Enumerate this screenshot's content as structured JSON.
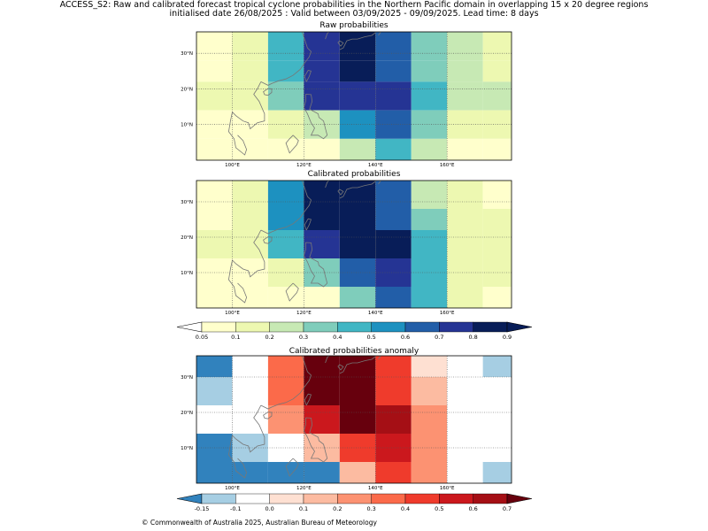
{
  "header": {
    "line1": "ACCESS_S2: Raw and calibrated forecast tropical cyclone probabilities in the Northern Pacific domain in overlapping 15 x 20 degree regions",
    "line2": "initialised date 26/08/2025 :  Valid between 03/09/2025 - 09/09/2025. Lead time: 8 days"
  },
  "axes": {
    "lon_ticks": [
      "100°E",
      "120°E",
      "140°E",
      "160°E"
    ],
    "lat_ticks": [
      "30°N",
      "20°N",
      "10°N"
    ]
  },
  "footer": {
    "text": "© Commonwealth of Australia 2025, Australian Bureau of Meteorology"
  },
  "colorbars": {
    "probability": {
      "labels": [
        "0.05",
        "0.1",
        "0.2",
        "0.3",
        "0.4",
        "0.5",
        "0.6",
        "0.7",
        "0.8",
        "0.9"
      ],
      "colors": [
        "#ffffcc",
        "#edf8b1",
        "#c7e9b4",
        "#7fcdbb",
        "#41b6c4",
        "#1d91c0",
        "#225ea8",
        "#253494",
        "#081d58"
      ]
    },
    "anomaly": {
      "labels": [
        "-0.15",
        "-0.1",
        "0.0",
        "0.1",
        "0.2",
        "0.3",
        "0.4",
        "0.5",
        "0.6",
        "0.7"
      ],
      "colors": [
        "#a6cee3",
        "#ffffff",
        "#fee0d2",
        "#fcbba1",
        "#fc9272",
        "#fb6a4a",
        "#ef3b2c",
        "#cb181d",
        "#a50f15"
      ]
    }
  },
  "chart_data": [
    {
      "type": "heatmap",
      "title": "Raw probabilities",
      "x_range": [
        90,
        178
      ],
      "y_range": [
        0,
        36
      ],
      "colors": [
        "#ffffcc",
        "#edf8b1",
        "#c7e9b4",
        "#7fcdbb",
        "#41b6c4",
        "#1d91c0",
        "#225ea8",
        "#253494",
        "#081d58"
      ],
      "cells": [
        {
          "x0": 90,
          "x1": 100,
          "y0": 28,
          "y1": 36,
          "v": 0.08
        },
        {
          "x0": 100,
          "x1": 110,
          "y0": 28,
          "y1": 36,
          "v": 0.15
        },
        {
          "x0": 110,
          "x1": 120,
          "y0": 28,
          "y1": 36,
          "v": 0.45
        },
        {
          "x0": 120,
          "x1": 130,
          "y0": 28,
          "y1": 36,
          "v": 0.75
        },
        {
          "x0": 130,
          "x1": 140,
          "y0": 28,
          "y1": 36,
          "v": 0.85
        },
        {
          "x0": 140,
          "x1": 150,
          "y0": 28,
          "y1": 36,
          "v": 0.65
        },
        {
          "x0": 150,
          "x1": 160,
          "y0": 28,
          "y1": 36,
          "v": 0.35
        },
        {
          "x0": 160,
          "x1": 170,
          "y0": 28,
          "y1": 36,
          "v": 0.25
        },
        {
          "x0": 170,
          "x1": 178,
          "y0": 28,
          "y1": 36,
          "v": 0.15
        },
        {
          "x0": 90,
          "x1": 100,
          "y0": 22,
          "y1": 28,
          "v": 0.08
        },
        {
          "x0": 100,
          "x1": 110,
          "y0": 22,
          "y1": 28,
          "v": 0.15
        },
        {
          "x0": 110,
          "x1": 120,
          "y0": 22,
          "y1": 28,
          "v": 0.45
        },
        {
          "x0": 120,
          "x1": 130,
          "y0": 22,
          "y1": 28,
          "v": 0.75
        },
        {
          "x0": 130,
          "x1": 140,
          "y0": 22,
          "y1": 28,
          "v": 0.85
        },
        {
          "x0": 140,
          "x1": 150,
          "y0": 22,
          "y1": 28,
          "v": 0.65
        },
        {
          "x0": 150,
          "x1": 160,
          "y0": 22,
          "y1": 28,
          "v": 0.35
        },
        {
          "x0": 160,
          "x1": 170,
          "y0": 22,
          "y1": 28,
          "v": 0.25
        },
        {
          "x0": 170,
          "x1": 178,
          "y0": 22,
          "y1": 28,
          "v": 0.15
        },
        {
          "x0": 90,
          "x1": 100,
          "y0": 14,
          "y1": 22,
          "v": 0.15
        },
        {
          "x0": 100,
          "x1": 110,
          "y0": 14,
          "y1": 22,
          "v": 0.15
        },
        {
          "x0": 110,
          "x1": 120,
          "y0": 14,
          "y1": 22,
          "v": 0.35
        },
        {
          "x0": 120,
          "x1": 130,
          "y0": 14,
          "y1": 22,
          "v": 0.7
        },
        {
          "x0": 130,
          "x1": 140,
          "y0": 14,
          "y1": 22,
          "v": 0.75
        },
        {
          "x0": 140,
          "x1": 150,
          "y0": 14,
          "y1": 22,
          "v": 0.7
        },
        {
          "x0": 150,
          "x1": 160,
          "y0": 14,
          "y1": 22,
          "v": 0.45
        },
        {
          "x0": 160,
          "x1": 170,
          "y0": 14,
          "y1": 22,
          "v": 0.25
        },
        {
          "x0": 170,
          "x1": 178,
          "y0": 14,
          "y1": 22,
          "v": 0.25
        },
        {
          "x0": 90,
          "x1": 100,
          "y0": 6,
          "y1": 14,
          "v": 0.08
        },
        {
          "x0": 100,
          "x1": 110,
          "y0": 6,
          "y1": 14,
          "v": 0.08
        },
        {
          "x0": 110,
          "x1": 120,
          "y0": 6,
          "y1": 14,
          "v": 0.15
        },
        {
          "x0": 120,
          "x1": 130,
          "y0": 6,
          "y1": 14,
          "v": 0.25
        },
        {
          "x0": 130,
          "x1": 140,
          "y0": 6,
          "y1": 14,
          "v": 0.55
        },
        {
          "x0": 140,
          "x1": 150,
          "y0": 6,
          "y1": 14,
          "v": 0.65
        },
        {
          "x0": 150,
          "x1": 160,
          "y0": 6,
          "y1": 14,
          "v": 0.35
        },
        {
          "x0": 160,
          "x1": 170,
          "y0": 6,
          "y1": 14,
          "v": 0.15
        },
        {
          "x0": 170,
          "x1": 178,
          "y0": 6,
          "y1": 14,
          "v": 0.15
        },
        {
          "x0": 90,
          "x1": 100,
          "y0": 0,
          "y1": 6,
          "v": 0.08
        },
        {
          "x0": 100,
          "x1": 110,
          "y0": 0,
          "y1": 6,
          "v": 0.08
        },
        {
          "x0": 110,
          "x1": 120,
          "y0": 0,
          "y1": 6,
          "v": 0.08
        },
        {
          "x0": 120,
          "x1": 130,
          "y0": 0,
          "y1": 6,
          "v": 0.08
        },
        {
          "x0": 130,
          "x1": 140,
          "y0": 0,
          "y1": 6,
          "v": 0.25
        },
        {
          "x0": 140,
          "x1": 150,
          "y0": 0,
          "y1": 6,
          "v": 0.45
        },
        {
          "x0": 150,
          "x1": 160,
          "y0": 0,
          "y1": 6,
          "v": 0.25
        },
        {
          "x0": 160,
          "x1": 170,
          "y0": 0,
          "y1": 6,
          "v": 0.08
        },
        {
          "x0": 170,
          "x1": 178,
          "y0": 0,
          "y1": 6,
          "v": 0.08
        }
      ]
    },
    {
      "type": "heatmap",
      "title": "Calibrated probabilities",
      "x_range": [
        90,
        178
      ],
      "y_range": [
        0,
        36
      ],
      "colors": [
        "#ffffcc",
        "#edf8b1",
        "#c7e9b4",
        "#7fcdbb",
        "#41b6c4",
        "#1d91c0",
        "#225ea8",
        "#253494",
        "#081d58"
      ],
      "cells": [
        {
          "x0": 90,
          "x1": 100,
          "y0": 28,
          "y1": 36,
          "v": 0.08
        },
        {
          "x0": 100,
          "x1": 110,
          "y0": 28,
          "y1": 36,
          "v": 0.15
        },
        {
          "x0": 110,
          "x1": 120,
          "y0": 28,
          "y1": 36,
          "v": 0.55
        },
        {
          "x0": 120,
          "x1": 130,
          "y0": 28,
          "y1": 36,
          "v": 0.85
        },
        {
          "x0": 130,
          "x1": 140,
          "y0": 28,
          "y1": 36,
          "v": 0.85
        },
        {
          "x0": 140,
          "x1": 150,
          "y0": 28,
          "y1": 36,
          "v": 0.65
        },
        {
          "x0": 150,
          "x1": 160,
          "y0": 28,
          "y1": 36,
          "v": 0.25
        },
        {
          "x0": 160,
          "x1": 170,
          "y0": 28,
          "y1": 36,
          "v": 0.15
        },
        {
          "x0": 170,
          "x1": 178,
          "y0": 28,
          "y1": 36,
          "v": 0.08
        },
        {
          "x0": 90,
          "x1": 100,
          "y0": 22,
          "y1": 28,
          "v": 0.08
        },
        {
          "x0": 100,
          "x1": 110,
          "y0": 22,
          "y1": 28,
          "v": 0.15
        },
        {
          "x0": 110,
          "x1": 120,
          "y0": 22,
          "y1": 28,
          "v": 0.55
        },
        {
          "x0": 120,
          "x1": 130,
          "y0": 22,
          "y1": 28,
          "v": 0.85
        },
        {
          "x0": 130,
          "x1": 140,
          "y0": 22,
          "y1": 28,
          "v": 0.85
        },
        {
          "x0": 140,
          "x1": 150,
          "y0": 22,
          "y1": 28,
          "v": 0.65
        },
        {
          "x0": 150,
          "x1": 160,
          "y0": 22,
          "y1": 28,
          "v": 0.35
        },
        {
          "x0": 160,
          "x1": 170,
          "y0": 22,
          "y1": 28,
          "v": 0.15
        },
        {
          "x0": 170,
          "x1": 178,
          "y0": 22,
          "y1": 28,
          "v": 0.15
        },
        {
          "x0": 90,
          "x1": 100,
          "y0": 14,
          "y1": 22,
          "v": 0.15
        },
        {
          "x0": 100,
          "x1": 110,
          "y0": 14,
          "y1": 22,
          "v": 0.15
        },
        {
          "x0": 110,
          "x1": 120,
          "y0": 14,
          "y1": 22,
          "v": 0.45
        },
        {
          "x0": 120,
          "x1": 130,
          "y0": 14,
          "y1": 22,
          "v": 0.75
        },
        {
          "x0": 130,
          "x1": 140,
          "y0": 14,
          "y1": 22,
          "v": 0.85
        },
        {
          "x0": 140,
          "x1": 150,
          "y0": 14,
          "y1": 22,
          "v": 0.85
        },
        {
          "x0": 150,
          "x1": 160,
          "y0": 14,
          "y1": 22,
          "v": 0.45
        },
        {
          "x0": 160,
          "x1": 170,
          "y0": 14,
          "y1": 22,
          "v": 0.15
        },
        {
          "x0": 170,
          "x1": 178,
          "y0": 14,
          "y1": 22,
          "v": 0.15
        },
        {
          "x0": 90,
          "x1": 100,
          "y0": 6,
          "y1": 14,
          "v": 0.08
        },
        {
          "x0": 100,
          "x1": 110,
          "y0": 6,
          "y1": 14,
          "v": 0.08
        },
        {
          "x0": 110,
          "x1": 120,
          "y0": 6,
          "y1": 14,
          "v": 0.15
        },
        {
          "x0": 120,
          "x1": 130,
          "y0": 6,
          "y1": 14,
          "v": 0.35
        },
        {
          "x0": 130,
          "x1": 140,
          "y0": 6,
          "y1": 14,
          "v": 0.65
        },
        {
          "x0": 140,
          "x1": 150,
          "y0": 6,
          "y1": 14,
          "v": 0.75
        },
        {
          "x0": 150,
          "x1": 160,
          "y0": 6,
          "y1": 14,
          "v": 0.45
        },
        {
          "x0": 160,
          "x1": 170,
          "y0": 6,
          "y1": 14,
          "v": 0.15
        },
        {
          "x0": 170,
          "x1": 178,
          "y0": 6,
          "y1": 14,
          "v": 0.15
        },
        {
          "x0": 90,
          "x1": 100,
          "y0": 0,
          "y1": 6,
          "v": 0.08
        },
        {
          "x0": 100,
          "x1": 110,
          "y0": 0,
          "y1": 6,
          "v": 0.08
        },
        {
          "x0": 110,
          "x1": 120,
          "y0": 0,
          "y1": 6,
          "v": 0.08
        },
        {
          "x0": 120,
          "x1": 130,
          "y0": 0,
          "y1": 6,
          "v": 0.08
        },
        {
          "x0": 130,
          "x1": 140,
          "y0": 0,
          "y1": 6,
          "v": 0.35
        },
        {
          "x0": 140,
          "x1": 150,
          "y0": 0,
          "y1": 6,
          "v": 0.65
        },
        {
          "x0": 150,
          "x1": 160,
          "y0": 0,
          "y1": 6,
          "v": 0.45
        },
        {
          "x0": 160,
          "x1": 170,
          "y0": 0,
          "y1": 6,
          "v": 0.15
        },
        {
          "x0": 170,
          "x1": 178,
          "y0": 0,
          "y1": 6,
          "v": 0.08
        }
      ]
    },
    {
      "type": "heatmap",
      "title": "Calibrated probabilities anomaly",
      "x_range": [
        90,
        178
      ],
      "y_range": [
        0,
        36
      ],
      "colors": [
        "#3182bd",
        "#a6cee3",
        "#ffffff",
        "#fee0d2",
        "#fcbba1",
        "#fc9272",
        "#fb6a4a",
        "#ef3b2c",
        "#cb181d",
        "#a50f15",
        "#67000d"
      ],
      "cells": [
        {
          "x0": 90,
          "x1": 100,
          "y0": 30,
          "y1": 36,
          "v": -0.2
        },
        {
          "x0": 100,
          "x1": 110,
          "y0": 30,
          "y1": 36,
          "v": -0.05
        },
        {
          "x0": 110,
          "x1": 120,
          "y0": 30,
          "y1": 36,
          "v": 0.35
        },
        {
          "x0": 120,
          "x1": 130,
          "y0": 30,
          "y1": 36,
          "v": 0.75
        },
        {
          "x0": 130,
          "x1": 140,
          "y0": 30,
          "y1": 36,
          "v": 0.75
        },
        {
          "x0": 140,
          "x1": 150,
          "y0": 30,
          "y1": 36,
          "v": 0.45
        },
        {
          "x0": 150,
          "x1": 160,
          "y0": 30,
          "y1": 36,
          "v": 0.05
        },
        {
          "x0": 160,
          "x1": 170,
          "y0": 30,
          "y1": 36,
          "v": -0.05
        },
        {
          "x0": 170,
          "x1": 178,
          "y0": 30,
          "y1": 36,
          "v": -0.12
        },
        {
          "x0": 90,
          "x1": 100,
          "y0": 22,
          "y1": 30,
          "v": -0.12
        },
        {
          "x0": 100,
          "x1": 110,
          "y0": 22,
          "y1": 30,
          "v": -0.05
        },
        {
          "x0": 110,
          "x1": 120,
          "y0": 22,
          "y1": 30,
          "v": 0.35
        },
        {
          "x0": 120,
          "x1": 130,
          "y0": 22,
          "y1": 30,
          "v": 0.75
        },
        {
          "x0": 130,
          "x1": 140,
          "y0": 22,
          "y1": 30,
          "v": 0.75
        },
        {
          "x0": 140,
          "x1": 150,
          "y0": 22,
          "y1": 30,
          "v": 0.45
        },
        {
          "x0": 150,
          "x1": 160,
          "y0": 22,
          "y1": 30,
          "v": 0.15
        },
        {
          "x0": 160,
          "x1": 170,
          "y0": 22,
          "y1": 30,
          "v": -0.05
        },
        {
          "x0": 170,
          "x1": 178,
          "y0": 22,
          "y1": 30,
          "v": -0.05
        },
        {
          "x0": 90,
          "x1": 100,
          "y0": 14,
          "y1": 22,
          "v": -0.05
        },
        {
          "x0": 100,
          "x1": 110,
          "y0": 14,
          "y1": 22,
          "v": -0.05
        },
        {
          "x0": 110,
          "x1": 120,
          "y0": 14,
          "y1": 22,
          "v": 0.25
        },
        {
          "x0": 120,
          "x1": 130,
          "y0": 14,
          "y1": 22,
          "v": 0.55
        },
        {
          "x0": 130,
          "x1": 140,
          "y0": 14,
          "y1": 22,
          "v": 0.75
        },
        {
          "x0": 140,
          "x1": 150,
          "y0": 14,
          "y1": 22,
          "v": 0.65
        },
        {
          "x0": 150,
          "x1": 160,
          "y0": 14,
          "y1": 22,
          "v": 0.25
        },
        {
          "x0": 160,
          "x1": 170,
          "y0": 14,
          "y1": 22,
          "v": -0.05
        },
        {
          "x0": 170,
          "x1": 178,
          "y0": 14,
          "y1": 22,
          "v": -0.05
        },
        {
          "x0": 90,
          "x1": 100,
          "y0": 6,
          "y1": 14,
          "v": -0.2
        },
        {
          "x0": 100,
          "x1": 110,
          "y0": 6,
          "y1": 14,
          "v": -0.12
        },
        {
          "x0": 110,
          "x1": 120,
          "y0": 6,
          "y1": 14,
          "v": -0.05
        },
        {
          "x0": 120,
          "x1": 130,
          "y0": 6,
          "y1": 14,
          "v": 0.15
        },
        {
          "x0": 130,
          "x1": 140,
          "y0": 6,
          "y1": 14,
          "v": 0.45
        },
        {
          "x0": 140,
          "x1": 150,
          "y0": 6,
          "y1": 14,
          "v": 0.55
        },
        {
          "x0": 150,
          "x1": 160,
          "y0": 6,
          "y1": 14,
          "v": 0.25
        },
        {
          "x0": 160,
          "x1": 170,
          "y0": 6,
          "y1": 14,
          "v": -0.05
        },
        {
          "x0": 170,
          "x1": 178,
          "y0": 6,
          "y1": 14,
          "v": -0.05
        },
        {
          "x0": 90,
          "x1": 100,
          "y0": 0,
          "y1": 6,
          "v": -0.2
        },
        {
          "x0": 100,
          "x1": 110,
          "y0": 0,
          "y1": 6,
          "v": -0.2
        },
        {
          "x0": 110,
          "x1": 120,
          "y0": 0,
          "y1": 6,
          "v": -0.2
        },
        {
          "x0": 120,
          "x1": 130,
          "y0": 0,
          "y1": 6,
          "v": -0.2
        },
        {
          "x0": 130,
          "x1": 140,
          "y0": 0,
          "y1": 6,
          "v": 0.15
        },
        {
          "x0": 140,
          "x1": 150,
          "y0": 0,
          "y1": 6,
          "v": 0.45
        },
        {
          "x0": 150,
          "x1": 160,
          "y0": 0,
          "y1": 6,
          "v": 0.25
        },
        {
          "x0": 160,
          "x1": 170,
          "y0": 0,
          "y1": 6,
          "v": -0.05
        },
        {
          "x0": 170,
          "x1": 178,
          "y0": 0,
          "y1": 6,
          "v": -0.12
        }
      ]
    }
  ]
}
